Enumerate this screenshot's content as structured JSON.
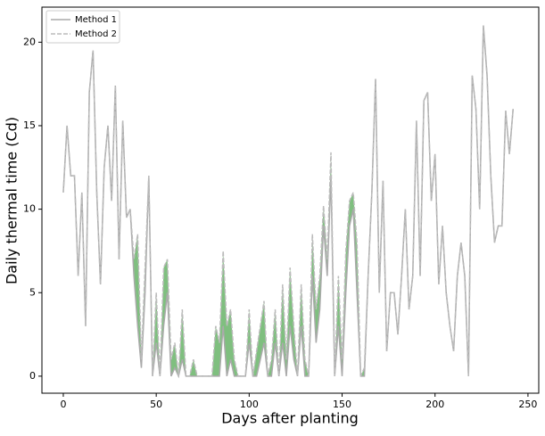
{
  "chart_data": {
    "type": "line",
    "xlabel": "Days after planting",
    "ylabel": "Daily thermal time (Cd)",
    "x": [
      0,
      2,
      4,
      6,
      8,
      10,
      12,
      14,
      16,
      18,
      20,
      22,
      24,
      26,
      28,
      30,
      32,
      34,
      36,
      38,
      40,
      42,
      44,
      46,
      48,
      50,
      52,
      54,
      56,
      58,
      60,
      62,
      64,
      66,
      68,
      70,
      72,
      74,
      76,
      78,
      80,
      82,
      84,
      86,
      88,
      90,
      92,
      94,
      96,
      98,
      100,
      102,
      104,
      106,
      108,
      110,
      112,
      114,
      116,
      118,
      120,
      122,
      124,
      126,
      128,
      130,
      132,
      134,
      136,
      138,
      140,
      142,
      144,
      146,
      148,
      150,
      152,
      154,
      156,
      158,
      160,
      162,
      164,
      166,
      168,
      170,
      172,
      174,
      176,
      178,
      180,
      182,
      184,
      186,
      188,
      190,
      192,
      194,
      196,
      198,
      200,
      202,
      204,
      206,
      208,
      210,
      212,
      214,
      216,
      218,
      220,
      222,
      224,
      226,
      228,
      230,
      232,
      234,
      236,
      238,
      240,
      242
    ],
    "series": [
      {
        "name": "Method 1",
        "color": "#aaaaaa",
        "dash": false,
        "values": [
          11,
          15,
          12,
          12,
          6,
          11,
          3,
          17,
          19.5,
          11,
          5.5,
          12.5,
          15,
          10.5,
          17.4,
          7,
          15.3,
          9.5,
          10,
          6,
          3,
          0.5,
          5,
          12,
          0,
          2,
          0,
          3,
          5,
          0,
          0.5,
          0,
          1,
          0,
          0,
          0,
          0,
          0,
          0,
          0,
          0,
          0,
          0,
          3,
          0,
          1,
          0,
          0,
          0,
          0,
          2,
          0,
          0,
          1,
          2,
          0,
          0,
          2,
          0,
          2,
          0,
          3,
          1,
          0,
          3,
          0,
          0,
          6,
          2,
          4,
          9,
          6,
          12,
          0,
          3,
          0,
          5,
          9,
          10,
          5,
          0,
          0,
          6,
          11,
          17.8,
          5,
          11.7,
          1.5,
          5,
          5,
          2.5,
          6,
          10,
          4,
          6,
          15.3,
          6,
          16.5,
          17,
          10.5,
          13.3,
          5.5,
          9,
          5,
          3,
          1.5,
          6,
          8,
          6,
          0,
          18,
          16,
          10,
          21,
          18,
          12,
          8,
          9,
          9,
          15.9,
          13.3,
          16
        ]
      },
      {
        "name": "Method 2",
        "color": "#bbbbbb",
        "dash": true,
        "values": [
          11,
          15,
          12,
          12,
          6,
          11,
          3,
          17,
          19.5,
          11,
          5.5,
          12.5,
          15,
          10.5,
          17.4,
          7,
          15.3,
          9.5,
          10,
          7,
          8.5,
          1,
          6.5,
          12,
          0,
          5,
          0,
          6.5,
          7,
          1,
          2,
          0,
          4,
          0,
          0,
          1,
          0,
          0,
          0,
          0,
          0,
          3,
          2,
          7.5,
          3,
          4,
          1,
          0,
          0,
          0,
          4,
          0,
          1.5,
          3,
          4.5,
          0,
          1,
          4,
          0,
          5.5,
          1,
          6.5,
          3,
          0,
          5.5,
          1,
          0,
          8.5,
          4,
          6,
          10.2,
          7,
          13.4,
          0,
          6,
          1,
          7.5,
          10.5,
          11,
          8,
          0,
          0.5,
          6,
          11,
          17.8,
          5,
          11.7,
          1.5,
          5,
          5,
          2.5,
          6,
          10,
          4,
          6,
          15.3,
          6,
          16.5,
          17,
          10.5,
          13.3,
          5.5,
          9,
          5,
          3,
          1.5,
          6,
          8,
          6,
          0,
          18,
          16,
          10,
          21,
          18,
          12,
          8,
          9,
          9,
          15.9,
          13.3,
          16
        ]
      }
    ],
    "fill_between": "#7fbf7f",
    "xlim": [
      -11.5,
      255.8
    ],
    "ylim": [
      -1.02,
      22.1
    ],
    "xticks": [
      0,
      50,
      100,
      150,
      200,
      250
    ],
    "yticks": [
      0,
      5,
      10,
      15,
      20
    ],
    "legend": "upper left"
  }
}
